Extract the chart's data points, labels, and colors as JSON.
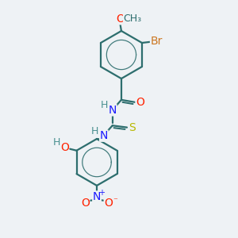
{
  "bg_color": "#eef2f5",
  "bond_color": "#2d6e6e",
  "bond_width": 1.6,
  "atom_colors": {
    "O": "#ff2200",
    "N": "#1a1aff",
    "S": "#b8b800",
    "Br": "#cc7722",
    "H": "#4a9090",
    "C": "#2d6e6e"
  },
  "font_size": 10,
  "font_size_h": 9,
  "font_size_br": 10
}
